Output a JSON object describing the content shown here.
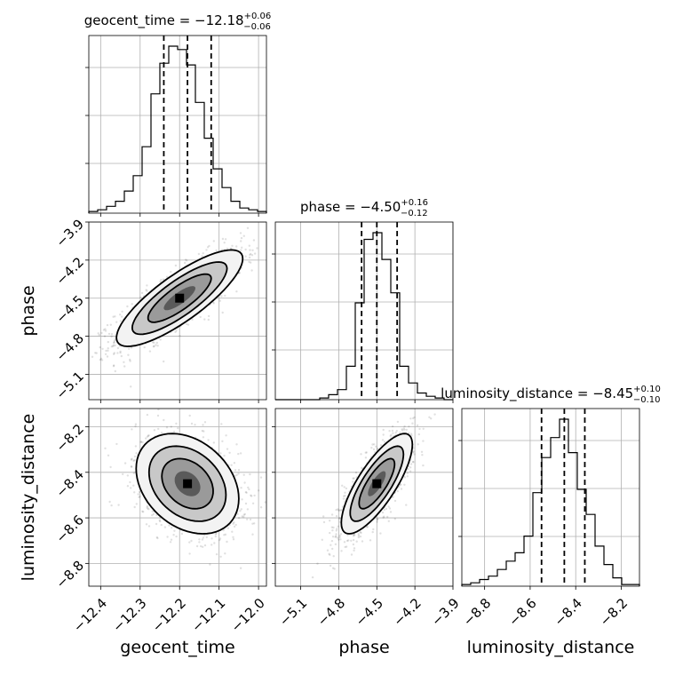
{
  "chart_data": {
    "type": "corner",
    "parameters": [
      {
        "name": "geocent_time",
        "title": {
          "prefix": "geocent_time = −12.18",
          "sup": "+0.06",
          "sub": "−0.06"
        },
        "median": -12.18,
        "q_low": -12.24,
        "q_high": -12.12,
        "range": [
          -12.43,
          -11.98
        ],
        "ticks": [
          -12.4,
          -12.3,
          -12.2,
          -12.1,
          -12.0
        ],
        "tick_labels": [
          "−12.4",
          "−12.3",
          "−12.2",
          "−12.1",
          "−12.0"
        ],
        "hist_edges": [
          -12.43,
          -12.4075,
          -12.385,
          -12.3625,
          -12.34,
          -12.3175,
          -12.295,
          -12.2725,
          -12.25,
          -12.2275,
          -12.205,
          -12.1825,
          -12.16,
          -12.1375,
          -12.115,
          -12.0925,
          -12.07,
          -12.0475,
          -12.025,
          -12.0025,
          -11.98
        ],
        "hist_counts": [
          0.01,
          0.02,
          0.04,
          0.07,
          0.13,
          0.22,
          0.39,
          0.7,
          0.88,
          0.98,
          0.96,
          0.87,
          0.65,
          0.44,
          0.26,
          0.15,
          0.07,
          0.03,
          0.02,
          0.01
        ]
      },
      {
        "name": "phase",
        "title": {
          "prefix": "phase = −4.50",
          "sup": "+0.16",
          "sub": "−0.12"
        },
        "median": -4.5,
        "q_low": -4.62,
        "q_high": -4.34,
        "range": [
          -5.3,
          -3.9
        ],
        "ticks": [
          -5.1,
          -4.8,
          -4.5,
          -4.2,
          -3.9
        ],
        "tick_labels": [
          "−5.1",
          "−4.8",
          "−4.5",
          "−4.2",
          "−3.9"
        ],
        "hist_edges": [
          -5.3,
          -5.23,
          -5.16,
          -5.09,
          -5.02,
          -4.95,
          -4.88,
          -4.81,
          -4.74,
          -4.67,
          -4.6,
          -4.53,
          -4.46,
          -4.39,
          -4.32,
          -4.25,
          -4.18,
          -4.11,
          -4.04,
          -3.97,
          -3.9
        ],
        "hist_counts": [
          0.0,
          0.0,
          0.0,
          0.0,
          0.0,
          0.01,
          0.03,
          0.06,
          0.2,
          0.58,
          0.96,
          1.0,
          0.84,
          0.64,
          0.2,
          0.1,
          0.04,
          0.02,
          0.01,
          0.0
        ]
      },
      {
        "name": "luminosity_distance",
        "title": {
          "prefix": "luminosity_distance = −8.45",
          "sup": "+0.10",
          "sub": "−0.10"
        },
        "median": -8.45,
        "q_low": -8.55,
        "q_high": -8.36,
        "range": [
          -8.9,
          -8.12
        ],
        "ticks": [
          -8.8,
          -8.6,
          -8.4,
          -8.2
        ],
        "tick_labels": [
          "−8.8",
          "−8.6",
          "−8.4",
          "−8.2"
        ],
        "hist_edges": [
          -8.9,
          -8.861,
          -8.822,
          -8.783,
          -8.744,
          -8.705,
          -8.666,
          -8.627,
          -8.588,
          -8.549,
          -8.51,
          -8.471,
          -8.432,
          -8.393,
          -8.354,
          -8.315,
          -8.276,
          -8.237,
          -8.198,
          -8.159,
          -8.12
        ],
        "hist_counts": [
          0.01,
          0.02,
          0.04,
          0.06,
          0.1,
          0.15,
          0.2,
          0.3,
          0.56,
          0.77,
          0.89,
          1.0,
          0.8,
          0.58,
          0.43,
          0.24,
          0.13,
          0.05,
          0.01,
          0.01
        ]
      }
    ],
    "pairs": [
      {
        "x": "geocent_time",
        "y": "phase",
        "mean": [
          -12.2,
          -4.5
        ],
        "sd": [
          0.08,
          0.19
        ],
        "corr": 0.82
      },
      {
        "x": "geocent_time",
        "y": "luminosity_distance",
        "mean": [
          -12.18,
          -8.45
        ],
        "sd": [
          0.065,
          0.11
        ],
        "corr": -0.3
      },
      {
        "x": "phase",
        "y": "luminosity_distance",
        "mean": [
          -4.5,
          -8.45
        ],
        "sd": [
          0.14,
          0.11
        ],
        "corr": 0.78
      }
    ],
    "grid": true
  }
}
